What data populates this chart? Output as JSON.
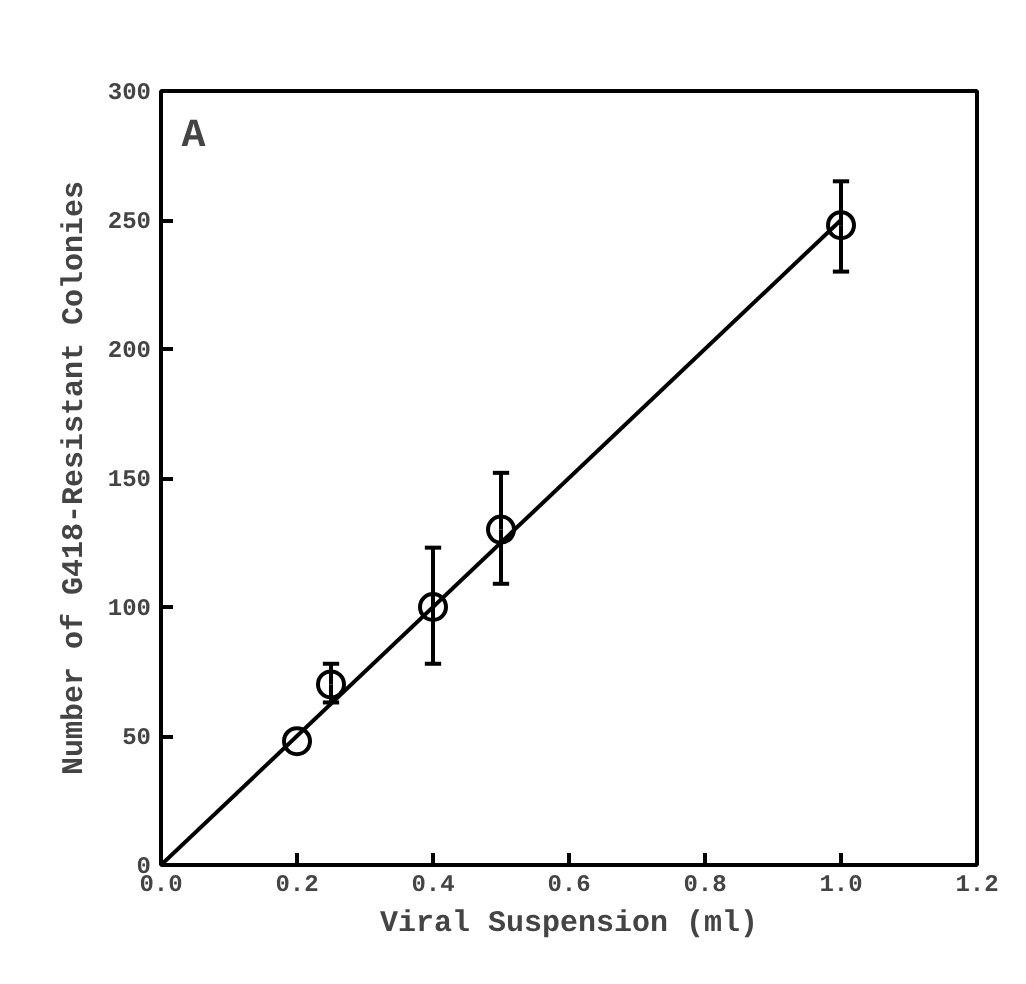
{
  "chart_data": {
    "type": "scatter",
    "xlabel": "Viral Suspension (ml)",
    "ylabel": "Number of G418-Resistant Colonies",
    "annotations": [
      "A"
    ],
    "xlim": [
      0,
      1.2
    ],
    "ylim": [
      0,
      300
    ],
    "xticks": [
      {
        "value": 0,
        "label": "0.0"
      },
      {
        "value": 0.2,
        "label": "0.2"
      },
      {
        "value": 0.4,
        "label": "0.4"
      },
      {
        "value": 0.6,
        "label": "0.6"
      },
      {
        "value": 0.8,
        "label": "0.8"
      },
      {
        "value": 1.0,
        "label": "1.0"
      },
      {
        "value": 1.2,
        "label": "1.2"
      }
    ],
    "yticks": [
      0,
      50,
      100,
      150,
      200,
      250,
      300
    ],
    "grid": false,
    "series": [
      {
        "marker": "circle",
        "color": "#000000",
        "x": [
          0.2,
          0.25,
          0.4,
          0.5,
          1.0
        ],
        "values": [
          48,
          70,
          100,
          130,
          248
        ],
        "errors": [
          null,
          [
            63,
            78
          ],
          [
            78,
            123
          ],
          [
            109,
            152
          ],
          [
            230,
            265
          ]
        ]
      },
      {
        "type": "line",
        "color": "#000000",
        "x": [
          0,
          1.0
        ],
        "values": [
          0,
          250
        ],
        "line_style": "solid"
      }
    ]
  }
}
